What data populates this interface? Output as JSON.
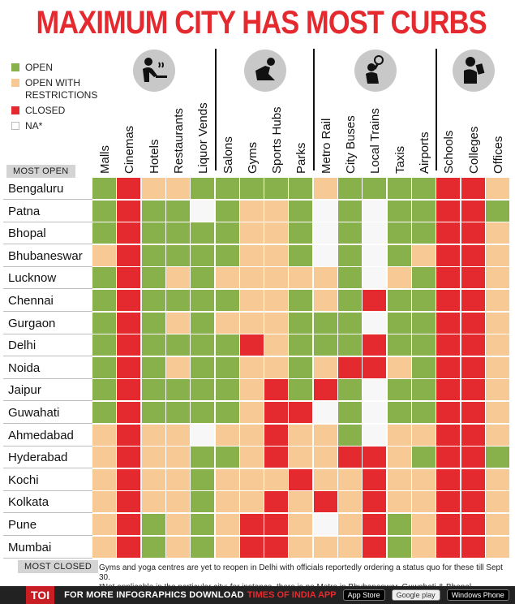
{
  "title": "MAXIMUM CITY HAS MOST CURBS",
  "colors": {
    "open": "#88b04b",
    "restricted": "#f7c994",
    "closed": "#e42a2f",
    "na": "#ffffff"
  },
  "legend": [
    {
      "key": "open",
      "label": "OPEN"
    },
    {
      "key": "restricted",
      "label": "OPEN WITH RESTRICTIONS"
    },
    {
      "key": "closed",
      "label": "CLOSED"
    },
    {
      "key": "na",
      "label": "NA*"
    }
  ],
  "icon_groups": [
    "people-dining-icon",
    "person-exercise-icon",
    "person-travel-icon",
    "person-reading-icon"
  ],
  "columns": [
    "Malls",
    "Cinemas",
    "Hotels",
    "Restaurants",
    "Liquor Vends",
    "Salons",
    "Gyms",
    "Sports Hubs",
    "Parks",
    "Metro Rail",
    "City Buses",
    "Local Trains",
    "Taxis",
    "Airports",
    "Schools",
    "Colleges",
    "Offices"
  ],
  "most_open_label": "MOST OPEN",
  "most_closed_label": "MOST CLOSED",
  "cities": [
    "Bengaluru",
    "Patna",
    "Bhopal",
    "Bhubaneswar",
    "Lucknow",
    "Chennai",
    "Gurgaon",
    "Delhi",
    "Noida",
    "Jaipur",
    "Guwahati",
    "Ahmedabad",
    "Hyderabad",
    "Kochi",
    "Kolkata",
    "Pune",
    "Mumbai"
  ],
  "matrix": [
    [
      "G",
      "R",
      "Y",
      "Y",
      "G",
      "G",
      "G",
      "G",
      "G",
      "Y",
      "G",
      "G",
      "G",
      "G",
      "R",
      "R",
      "Y"
    ],
    [
      "G",
      "R",
      "G",
      "G",
      "N",
      "G",
      "Y",
      "Y",
      "G",
      "N",
      "G",
      "N",
      "G",
      "G",
      "R",
      "R",
      "G"
    ],
    [
      "G",
      "R",
      "G",
      "G",
      "G",
      "G",
      "Y",
      "Y",
      "G",
      "N",
      "G",
      "N",
      "G",
      "G",
      "R",
      "R",
      "Y"
    ],
    [
      "Y",
      "R",
      "G",
      "G",
      "G",
      "G",
      "Y",
      "Y",
      "G",
      "N",
      "G",
      "N",
      "G",
      "Y",
      "R",
      "R",
      "Y"
    ],
    [
      "G",
      "R",
      "G",
      "Y",
      "G",
      "Y",
      "Y",
      "Y",
      "Y",
      "Y",
      "G",
      "N",
      "Y",
      "G",
      "R",
      "R",
      "Y"
    ],
    [
      "G",
      "R",
      "G",
      "G",
      "G",
      "G",
      "Y",
      "Y",
      "G",
      "Y",
      "G",
      "R",
      "G",
      "G",
      "R",
      "R",
      "Y"
    ],
    [
      "G",
      "R",
      "G",
      "Y",
      "G",
      "Y",
      "Y",
      "Y",
      "G",
      "G",
      "G",
      "N",
      "G",
      "G",
      "R",
      "R",
      "Y"
    ],
    [
      "G",
      "R",
      "G",
      "G",
      "G",
      "G",
      "R",
      "Y",
      "G",
      "G",
      "G",
      "R",
      "G",
      "G",
      "R",
      "R",
      "Y"
    ],
    [
      "G",
      "R",
      "G",
      "Y",
      "G",
      "G",
      "Y",
      "Y",
      "G",
      "Y",
      "R",
      "R",
      "Y",
      "G",
      "R",
      "R",
      "Y"
    ],
    [
      "G",
      "R",
      "G",
      "G",
      "G",
      "G",
      "Y",
      "R",
      "G",
      "R",
      "G",
      "N",
      "G",
      "G",
      "R",
      "R",
      "Y"
    ],
    [
      "G",
      "R",
      "G",
      "G",
      "G",
      "G",
      "Y",
      "R",
      "R",
      "N",
      "G",
      "N",
      "G",
      "G",
      "R",
      "R",
      "Y"
    ],
    [
      "Y",
      "R",
      "Y",
      "Y",
      "N",
      "Y",
      "Y",
      "R",
      "Y",
      "Y",
      "G",
      "N",
      "Y",
      "Y",
      "R",
      "R",
      "Y"
    ],
    [
      "Y",
      "R",
      "Y",
      "Y",
      "G",
      "G",
      "Y",
      "R",
      "Y",
      "Y",
      "R",
      "R",
      "Y",
      "G",
      "R",
      "R",
      "G"
    ],
    [
      "Y",
      "R",
      "Y",
      "Y",
      "G",
      "Y",
      "Y",
      "Y",
      "R",
      "Y",
      "Y",
      "R",
      "Y",
      "Y",
      "R",
      "R",
      "Y"
    ],
    [
      "Y",
      "R",
      "Y",
      "Y",
      "G",
      "Y",
      "Y",
      "R",
      "Y",
      "R",
      "Y",
      "R",
      "Y",
      "Y",
      "R",
      "R",
      "Y"
    ],
    [
      "Y",
      "R",
      "G",
      "Y",
      "G",
      "Y",
      "R",
      "R",
      "Y",
      "N",
      "Y",
      "R",
      "G",
      "Y",
      "R",
      "R",
      "Y"
    ],
    [
      "Y",
      "R",
      "G",
      "Y",
      "G",
      "Y",
      "R",
      "R",
      "Y",
      "Y",
      "Y",
      "R",
      "G",
      "Y",
      "R",
      "R",
      "Y"
    ]
  ],
  "notes": [
    "Gyms and yoga centres are yet to reopen in Delhi with officials reportedly ordering a status quo for these till Sept 30.",
    "*Not applicable in the particular city; for instance, there is no Metro in Bhubaneswar, Guwahati & Bhopal"
  ],
  "footer": {
    "logo": "TOI",
    "text": "FOR MORE INFOGRAPHICS DOWNLOAD",
    "brand": "TIMES OF INDIA APP",
    "stores": [
      "App Store",
      "Google play",
      "Windows Phone"
    ]
  }
}
